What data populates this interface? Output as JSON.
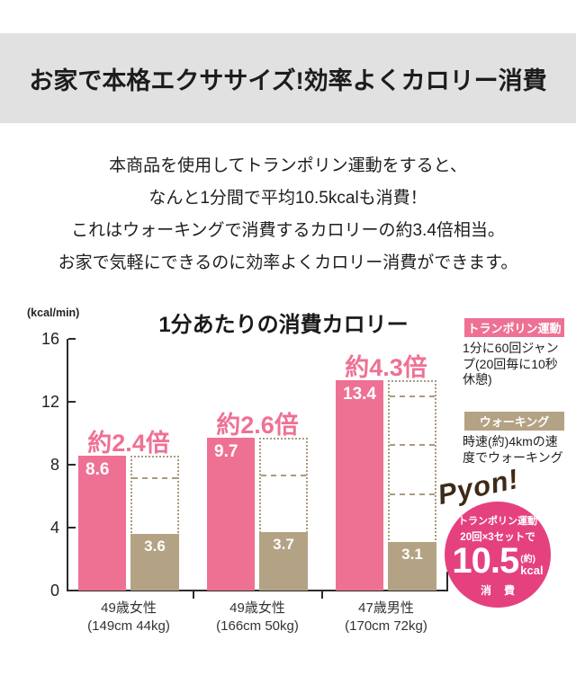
{
  "header": {
    "title": "お家で本格エクササイズ!効率よくカロリー消費"
  },
  "intro": {
    "lines": [
      "本商品を使用してトランポリン運動をすると、",
      "なんと1分間で平均10.5kcalも消費！",
      "これはウォーキングで消費するカロリーの約3.4倍相当。",
      "お家で気軽にできるのに効率よくカロリー消費ができます。"
    ]
  },
  "chart_data": {
    "type": "bar",
    "title": "1分あたりの消費カロリー",
    "ylabel": "(kcal/min)",
    "xlabel": "",
    "ylim": [
      0,
      16
    ],
    "y_ticks": [
      0,
      4,
      8,
      12,
      16
    ],
    "grid": false,
    "legend_position": "right",
    "categories": [
      {
        "label": "49歳女性",
        "sub": "(149cm 44kg)"
      },
      {
        "label": "49歳女性",
        "sub": "(166cm 50kg)"
      },
      {
        "label": "47歳男性",
        "sub": "(170cm 72kg)"
      }
    ],
    "series": [
      {
        "name": "トランポリン運動",
        "color": "#ee7194",
        "values": [
          8.6,
          9.7,
          13.4
        ]
      },
      {
        "name": "ウォーキング",
        "color": "#b3a284",
        "values": [
          3.6,
          3.7,
          3.1
        ]
      }
    ],
    "multipliers": [
      "約2.4倍",
      "約2.6倍",
      "約4.3倍"
    ],
    "annotation_note": "dotted boxes show walking bar stacked to trampoline height"
  },
  "legend": {
    "items": [
      {
        "label": "トランポリン運動",
        "desc": "1分に60回ジャンプ(20回毎に10秒休憩)",
        "color": "#ee7194"
      },
      {
        "label": "ウォーキング",
        "desc": "時速(約)4kmの速度でウォーキング",
        "color": "#b3a284"
      }
    ]
  },
  "pyon_badge": {
    "exclaim": "Pyon!",
    "line1": "トランポリン運動",
    "line2": "20回×3セットで",
    "value": "10.5",
    "approx": "(約)",
    "unit": "kcal",
    "consume": "消費"
  },
  "colors": {
    "header_bg": "#e1e1e1",
    "trampoline_pink": "#ee7194",
    "walking_tan": "#b3a284",
    "dotted_outline": "#aa9b7d",
    "circle_pink": "#e5417f",
    "pyon_brown": "#3f2a17",
    "axis": "#2b2b2b"
  }
}
